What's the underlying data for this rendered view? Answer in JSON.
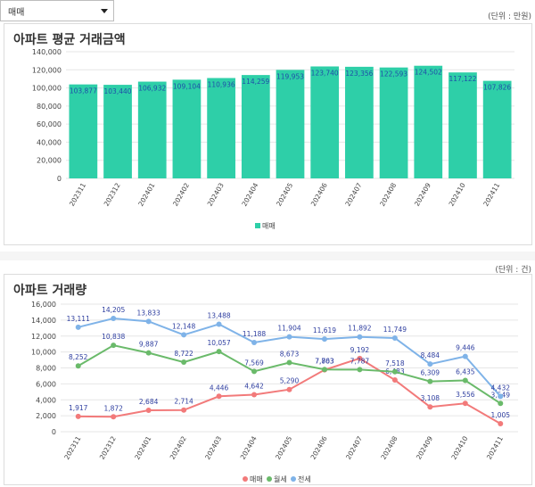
{
  "filter": {
    "selected": "매매"
  },
  "chart1": {
    "title": "아파트 평균 거래금액",
    "unit": "(단위 : 만원)",
    "chart_data": {
      "type": "bar",
      "categories": [
        "202311",
        "202312",
        "202401",
        "202402",
        "202403",
        "202404",
        "202405",
        "202406",
        "202407",
        "202408",
        "202409",
        "202410",
        "202411"
      ],
      "series": [
        {
          "name": "매매",
          "values": [
            103877,
            103440,
            106932,
            109104,
            110936,
            114259,
            119953,
            123740,
            123356,
            122593,
            124502,
            117122,
            107826
          ],
          "labels": [
            "103,877",
            "103,440",
            "106,932",
            "109,104",
            "110,936",
            "114,259",
            "119,953",
            "123,740",
            "123,356",
            "122,593",
            "124,502",
            "117,122",
            "107,826"
          ]
        }
      ],
      "ylim": [
        0,
        140000
      ],
      "yticks": [
        "0",
        "20,000",
        "40,000",
        "60,000",
        "80,000",
        "100,000",
        "120,000",
        "140,000"
      ],
      "legend": "bottom",
      "color": "#2ecfa8"
    }
  },
  "chart2": {
    "title": "아파트 거래량",
    "unit": "(단위 : 건)",
    "chart_data": {
      "type": "line",
      "categories": [
        "202311",
        "202312",
        "202401",
        "202402",
        "202403",
        "202404",
        "202405",
        "202406",
        "202407",
        "202408",
        "202409",
        "202410",
        "202411"
      ],
      "series": [
        {
          "name": "매매",
          "color": "#f27a7a",
          "values": [
            1917,
            1872,
            2684,
            2714,
            4446,
            4642,
            5290,
            7763,
            9192,
            6483,
            3108,
            3556,
            1005
          ],
          "labels": [
            "1,917",
            "1,872",
            "2,684",
            "2,714",
            "4,446",
            "4,642",
            "5,290",
            "7,763",
            "9,192",
            "6,483",
            "3,108",
            "3,556",
            "1,005"
          ]
        },
        {
          "name": "월세",
          "color": "#6aba6a",
          "values": [
            8252,
            10838,
            9887,
            8722,
            10057,
            7569,
            8673,
            7803,
            7787,
            7518,
            6309,
            6435,
            3549
          ],
          "labels": [
            "8,252",
            "10,838",
            "9,887",
            "8,722",
            "10,057",
            "7,569",
            "8,673",
            "7,803",
            "7,787",
            "7,518",
            "6,309",
            "6,435",
            "3,549"
          ]
        },
        {
          "name": "전세",
          "color": "#7fb3e8",
          "values": [
            13111,
            14205,
            13833,
            12148,
            13488,
            11188,
            11904,
            11619,
            11892,
            11749,
            8484,
            9446,
            4432
          ],
          "labels": [
            "13,111",
            "14,205",
            "13,833",
            "12,148",
            "13,488",
            "11,188",
            "11,904",
            "11,619",
            "11,892",
            "11,749",
            "8,484",
            "9,446",
            "4,432"
          ]
        }
      ],
      "ylim": [
        0,
        16000
      ],
      "yticks": [
        "0",
        "2,000",
        "4,000",
        "6,000",
        "8,000",
        "10,000",
        "12,000",
        "14,000",
        "16,000"
      ],
      "legend": "bottom"
    }
  }
}
